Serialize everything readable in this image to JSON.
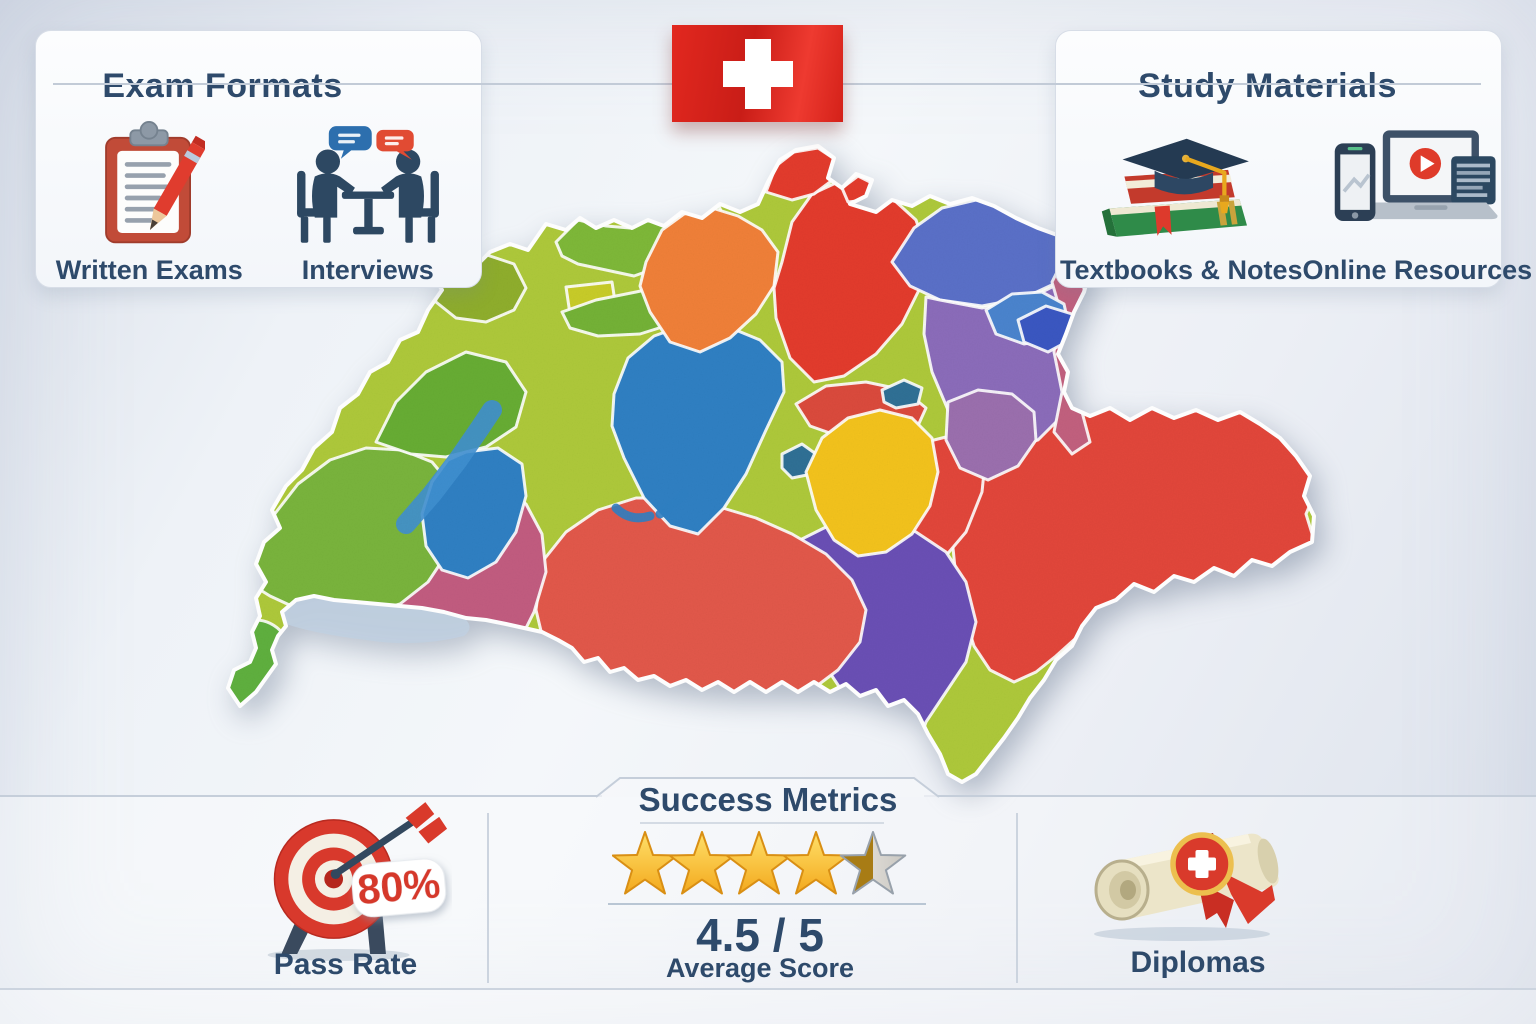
{
  "colors": {
    "heading_navy": "#2e4a6b",
    "flag_red": "#d8251e",
    "accent_red": "#d5372b",
    "star_gold": "#f3b01c",
    "divider": "#c5ceda"
  },
  "flag": {
    "label": "swiss-flag"
  },
  "panels": {
    "exam_formats": {
      "title": "Exam Formats",
      "items": [
        {
          "icon": "clipboard-pencil-icon",
          "label": "Written Exams"
        },
        {
          "icon": "interview-people-icon",
          "label": "Interviews"
        }
      ]
    },
    "study_materials": {
      "title": "Study Materials",
      "items": [
        {
          "icon": "books-gradcap-icon",
          "label": "Textbooks & Notes"
        },
        {
          "icon": "devices-video-icon",
          "label": "Online Resources"
        }
      ]
    }
  },
  "map": {
    "name": "switzerland-cantons-map",
    "style": "watercolor",
    "palette": [
      "#79b43c",
      "#aec93a",
      "#2f80c3",
      "#e33b2c",
      "#f08038",
      "#f3c31c",
      "#8b6cba",
      "#6a4fb5",
      "#c25c80",
      "#e2584a",
      "#5a70c8",
      "#2f7095",
      "#9b6fae"
    ]
  },
  "metrics": {
    "title": "Success Metrics",
    "pass_rate": {
      "icon": "target-arrow-icon",
      "value": "80%",
      "label": "Pass Rate"
    },
    "average_score": {
      "icon": "star-rating",
      "stars_total": 5,
      "stars_full": 4,
      "stars_half": 1,
      "value": "4.5 / 5",
      "label": "Average Score"
    },
    "diplomas": {
      "icon": "diploma-scroll-icon",
      "label": "Diplomas"
    }
  }
}
